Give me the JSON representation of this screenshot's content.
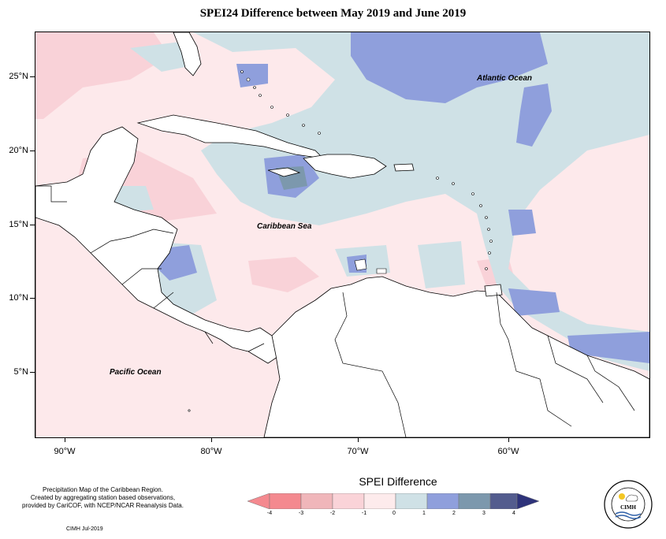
{
  "title": "SPEI24 Difference between May 2019 and June 2019",
  "map": {
    "latitude_labels": [
      "25°N",
      "20°N",
      "15°N",
      "10°N",
      "5°N"
    ],
    "longitude_labels": [
      "90°W",
      "80°W",
      "70°W",
      "60°W"
    ],
    "place_labels": {
      "atlantic": "Atlantic Ocean",
      "caribbean": "Caribbean Sea",
      "pacific": "Pacific Ocean"
    }
  },
  "credits": {
    "lines": [
      "Precipitation Map of the Caribbean Region.",
      "Created by aggregating station based observations,",
      "provided by CariCOF, with NCEP/NCAR Reanalysis Data."
    ],
    "stamp": "CIMH Jul-2019"
  },
  "legend": {
    "title": "SPEI Difference",
    "ticks": [
      "-4",
      "-3",
      "-2",
      "-1",
      "0",
      "1",
      "2",
      "3",
      "4"
    ],
    "colors": [
      "#f4898f",
      "#f0b6ba",
      "#fad3d8",
      "#fdebec",
      "#cfe1e6",
      "#8f9fdc",
      "#7c98ad",
      "#535c8e",
      "#2e337a"
    ]
  },
  "logo": {
    "text": "CIMH",
    "ring_text": "Caribbean Institute for Meteorology and Hydrology"
  }
}
